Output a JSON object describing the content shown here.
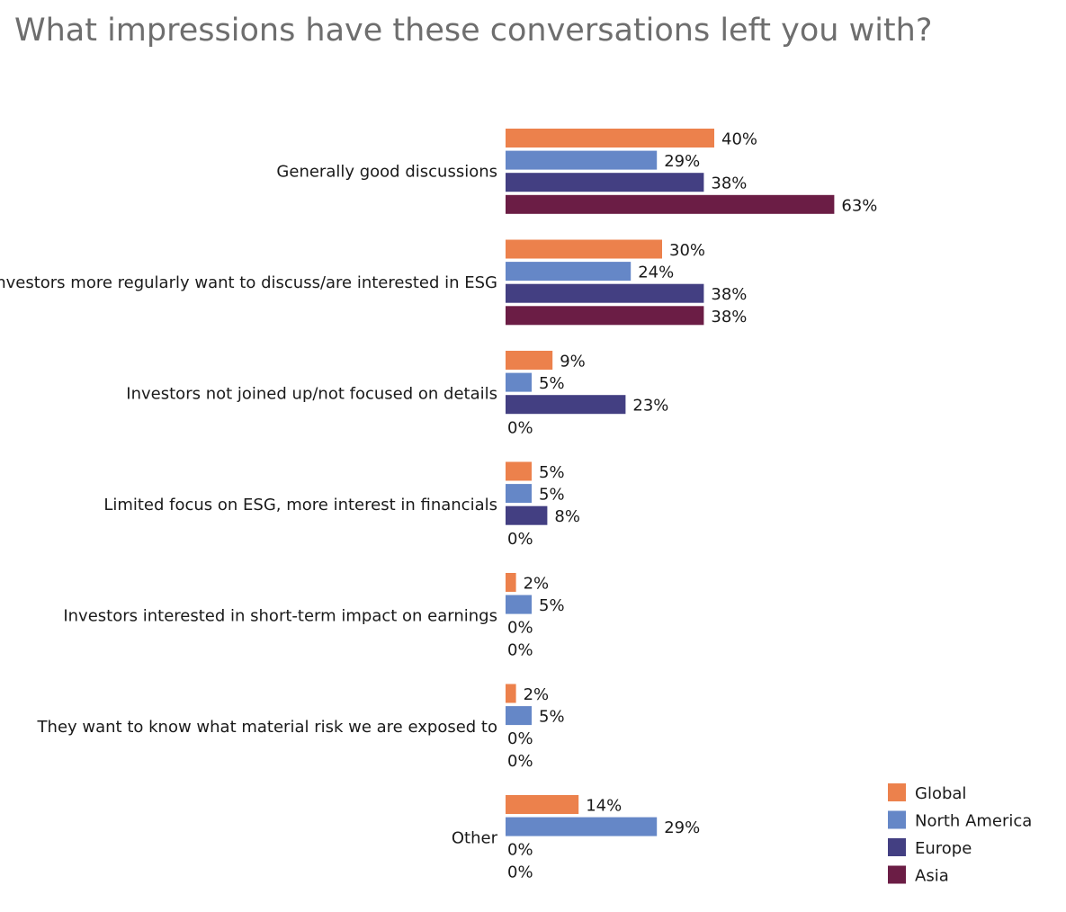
{
  "chart_data": {
    "type": "bar",
    "orientation": "horizontal",
    "title": "What impressions have these conversations left you with?",
    "categories": [
      "Generally good discussions",
      "Investors more regularly want to discuss/are interested in ESG",
      "Investors not joined up/not focused on details",
      "Limited focus on ESG, more interest in financials",
      "Investors interested in short-term impact on earnings",
      "They want to know what material risk we are exposed to",
      "Other"
    ],
    "series": [
      {
        "name": "Global",
        "color": "#ec814c",
        "values": [
          40,
          30,
          9,
          5,
          2,
          2,
          14
        ]
      },
      {
        "name": "North America",
        "color": "#6587c7",
        "values": [
          29,
          24,
          5,
          5,
          5,
          5,
          29
        ]
      },
      {
        "name": "Europe",
        "color": "#433f82",
        "values": [
          38,
          38,
          23,
          8,
          0,
          0,
          0
        ]
      },
      {
        "name": "Asia",
        "color": "#6b1d45",
        "values": [
          63,
          38,
          0,
          0,
          0,
          0,
          0
        ]
      }
    ],
    "value_suffix": "%",
    "xlim": [
      0,
      70
    ],
    "grid": false,
    "legend_position": "bottom-right"
  }
}
